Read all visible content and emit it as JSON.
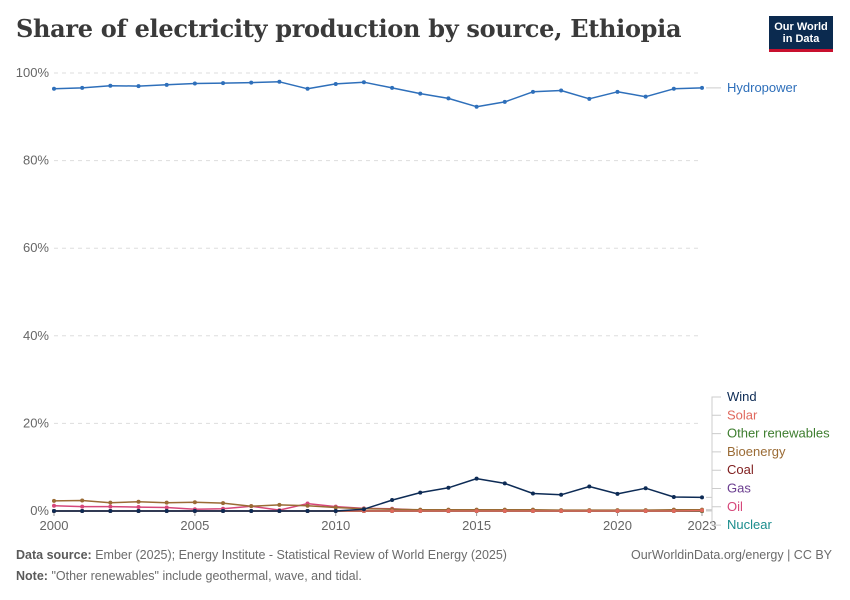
{
  "header": {
    "title": "Share of electricity production by source, Ethiopia",
    "logo_line1": "Our World",
    "logo_line2": "in Data"
  },
  "footer": {
    "source_label": "Data source:",
    "source_text": "Ember (2025); Energy Institute - Statistical Review of World Energy (2025)",
    "note_label": "Note:",
    "note_text": "\"Other renewables\" include geothermal, wave, and tidal.",
    "credit": "OurWorldinData.org/energy | CC BY"
  },
  "chart_data": {
    "type": "line",
    "title": "Share of electricity production by source, Ethiopia",
    "xlabel": "",
    "ylabel": "",
    "x": [
      2000,
      2001,
      2002,
      2003,
      2004,
      2005,
      2006,
      2007,
      2008,
      2009,
      2010,
      2011,
      2012,
      2013,
      2014,
      2015,
      2016,
      2017,
      2018,
      2019,
      2020,
      2021,
      2022,
      2023
    ],
    "x_tick_labels": [
      "2000",
      "2005",
      "2010",
      "2015",
      "2020",
      "2023"
    ],
    "x_ticks": [
      2000,
      2005,
      2010,
      2015,
      2020,
      2023
    ],
    "y_ticks": [
      0,
      20,
      40,
      60,
      80,
      100
    ],
    "y_tick_labels": [
      "0%",
      "20%",
      "40%",
      "60%",
      "80%",
      "100%"
    ],
    "xlim": [
      2000,
      2023
    ],
    "ylim": [
      0,
      100
    ],
    "grid": "horizontal dashed",
    "legend": "right, labels at line ends",
    "series": [
      {
        "name": "Hydropower",
        "color": "#2e6fba",
        "values": [
          96.4,
          96.6,
          97.1,
          97.0,
          97.3,
          97.6,
          97.7,
          97.8,
          98.0,
          96.4,
          97.5,
          97.9,
          96.6,
          95.3,
          94.2,
          92.3,
          93.4,
          95.7,
          96.0,
          94.1,
          95.7,
          94.6,
          96.4,
          96.6
        ]
      },
      {
        "name": "Wind",
        "color": "#0d2b55",
        "values": [
          0,
          0,
          0,
          0,
          0,
          0,
          0,
          0,
          0,
          0,
          0,
          0.4,
          2.5,
          4.2,
          5.3,
          7.4,
          6.3,
          4.0,
          3.7,
          5.6,
          3.9,
          5.2,
          3.2,
          3.1
        ]
      },
      {
        "name": "Solar",
        "color": "#e0685d",
        "values": [
          0,
          0,
          0,
          0,
          0,
          0,
          0,
          0,
          0,
          0,
          0,
          0,
          0,
          0,
          0,
          0,
          0,
          0,
          0,
          0,
          0,
          0,
          0,
          0.1
        ]
      },
      {
        "name": "Other renewables",
        "color": "#3d7d2e",
        "values": [
          0,
          0,
          0,
          0,
          0,
          0,
          0,
          0,
          0,
          0,
          0,
          0,
          0,
          0,
          0,
          0,
          0,
          0,
          0,
          0,
          0,
          0,
          0,
          0
        ]
      },
      {
        "name": "Bioenergy",
        "color": "#9a6b35",
        "values": [
          2.3,
          2.4,
          1.9,
          2.1,
          1.9,
          2.0,
          1.8,
          1.1,
          1.4,
          1.2,
          0.8,
          0.5,
          0.4,
          0.3,
          0.3,
          0.3,
          0.3,
          0.3,
          0.2,
          0.2,
          0.2,
          0.2,
          0.3,
          0.3
        ]
      },
      {
        "name": "Coal",
        "color": "#7f1d1d",
        "values": [
          0,
          0,
          0,
          0,
          0,
          0,
          0,
          0,
          0,
          0,
          0,
          0,
          0,
          0,
          0,
          0,
          0,
          0,
          0,
          0,
          0,
          0,
          0,
          0
        ]
      },
      {
        "name": "Gas",
        "color": "#6a3d8f",
        "values": [
          0,
          0,
          0,
          0,
          0,
          0,
          0,
          0,
          0,
          0,
          0,
          0,
          0,
          0,
          0,
          0,
          0,
          0,
          0,
          0,
          0,
          0,
          0,
          0
        ]
      },
      {
        "name": "Oil",
        "color": "#d6477a",
        "values": [
          1.2,
          1.0,
          1.0,
          0.9,
          0.8,
          0.4,
          0.5,
          1.1,
          0.2,
          1.7,
          1.0,
          0.6,
          0.5,
          0.2,
          0.2,
          0.2,
          0.1,
          0.1,
          0.1,
          0.1,
          0.1,
          0.1,
          0.1,
          0.1
        ]
      },
      {
        "name": "Nuclear",
        "color": "#1a8d8d",
        "values": [
          0,
          0,
          0,
          0,
          0,
          0,
          0,
          0,
          0,
          0,
          0,
          0,
          0,
          0,
          0,
          0,
          0,
          0,
          0,
          0,
          0,
          0,
          0,
          0
        ]
      }
    ]
  }
}
